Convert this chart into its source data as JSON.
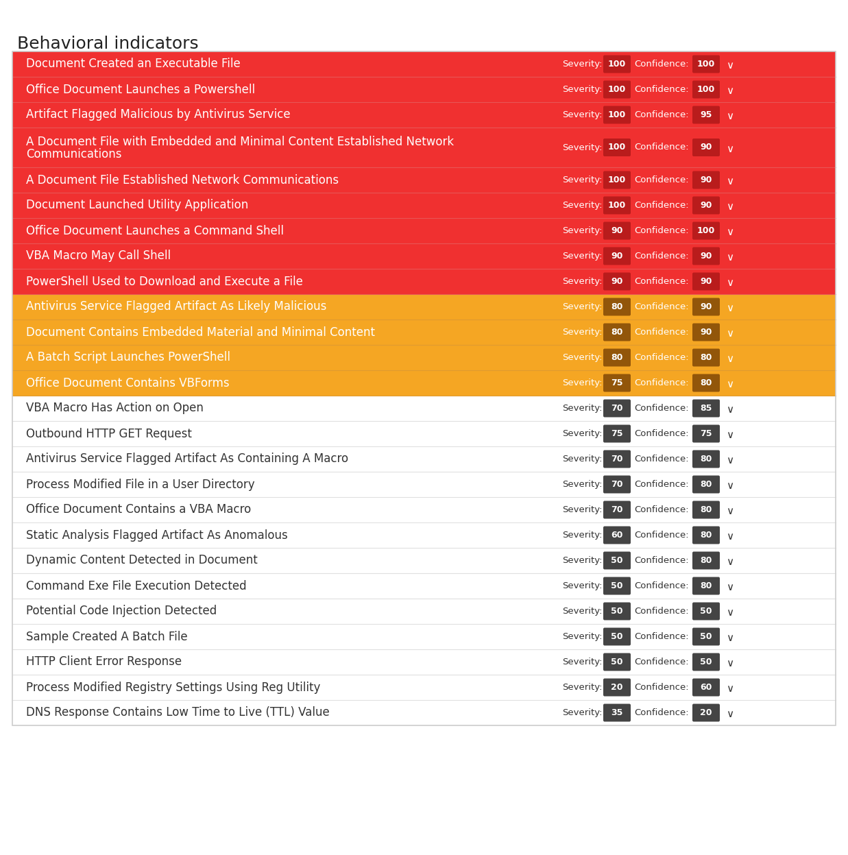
{
  "title": "Behavioral indicators",
  "title_fontsize": 18,
  "title_color": "#222222",
  "title_fontweight": "normal",
  "background_color": "#ffffff",
  "rows": [
    {
      "label": "Document Created an Executable File",
      "severity": 100,
      "confidence": 100,
      "bg": "#f03030",
      "text_color": "#ffffff",
      "multiline": false
    },
    {
      "label": "Office Document Launches a Powershell",
      "severity": 100,
      "confidence": 100,
      "bg": "#f03030",
      "text_color": "#ffffff",
      "multiline": false
    },
    {
      "label": "Artifact Flagged Malicious by Antivirus Service",
      "severity": 100,
      "confidence": 95,
      "bg": "#f03030",
      "text_color": "#ffffff",
      "multiline": false
    },
    {
      "label": "A Document File with Embedded and Minimal Content Established Network\nCommunications",
      "severity": 100,
      "confidence": 90,
      "bg": "#f03030",
      "text_color": "#ffffff",
      "multiline": true
    },
    {
      "label": "A Document File Established Network Communications",
      "severity": 100,
      "confidence": 90,
      "bg": "#f03030",
      "text_color": "#ffffff",
      "multiline": false
    },
    {
      "label": "Document Launched Utility Application",
      "severity": 100,
      "confidence": 90,
      "bg": "#f03030",
      "text_color": "#ffffff",
      "multiline": false
    },
    {
      "label": "Office Document Launches a Command Shell",
      "severity": 90,
      "confidence": 100,
      "bg": "#f03030",
      "text_color": "#ffffff",
      "multiline": false
    },
    {
      "label": "VBA Macro May Call Shell",
      "severity": 90,
      "confidence": 90,
      "bg": "#f03030",
      "text_color": "#ffffff",
      "multiline": false
    },
    {
      "label": "PowerShell Used to Download and Execute a File",
      "severity": 90,
      "confidence": 90,
      "bg": "#f03030",
      "text_color": "#ffffff",
      "multiline": false
    },
    {
      "label": "Antivirus Service Flagged Artifact As Likely Malicious",
      "severity": 80,
      "confidence": 90,
      "bg": "#f5a623",
      "text_color": "#ffffff",
      "multiline": false
    },
    {
      "label": "Document Contains Embedded Material and Minimal Content",
      "severity": 80,
      "confidence": 90,
      "bg": "#f5a623",
      "text_color": "#ffffff",
      "multiline": false
    },
    {
      "label": "A Batch Script Launches PowerShell",
      "severity": 80,
      "confidence": 80,
      "bg": "#f5a623",
      "text_color": "#ffffff",
      "multiline": false
    },
    {
      "label": "Office Document Contains VBForms",
      "severity": 75,
      "confidence": 80,
      "bg": "#f5a623",
      "text_color": "#ffffff",
      "multiline": false
    },
    {
      "label": "VBA Macro Has Action on Open",
      "severity": 70,
      "confidence": 85,
      "bg": "#ffffff",
      "text_color": "#333333",
      "multiline": false
    },
    {
      "label": "Outbound HTTP GET Request",
      "severity": 75,
      "confidence": 75,
      "bg": "#ffffff",
      "text_color": "#333333",
      "multiline": false
    },
    {
      "label": "Antivirus Service Flagged Artifact As Containing A Macro",
      "severity": 70,
      "confidence": 80,
      "bg": "#ffffff",
      "text_color": "#333333",
      "multiline": false
    },
    {
      "label": "Process Modified File in a User Directory",
      "severity": 70,
      "confidence": 80,
      "bg": "#ffffff",
      "text_color": "#333333",
      "multiline": false
    },
    {
      "label": "Office Document Contains a VBA Macro",
      "severity": 70,
      "confidence": 80,
      "bg": "#ffffff",
      "text_color": "#333333",
      "multiline": false
    },
    {
      "label": "Static Analysis Flagged Artifact As Anomalous",
      "severity": 60,
      "confidence": 80,
      "bg": "#ffffff",
      "text_color": "#333333",
      "multiline": false
    },
    {
      "label": "Dynamic Content Detected in Document",
      "severity": 50,
      "confidence": 80,
      "bg": "#ffffff",
      "text_color": "#333333",
      "multiline": false
    },
    {
      "label": "Command Exe File Execution Detected",
      "severity": 50,
      "confidence": 80,
      "bg": "#ffffff",
      "text_color": "#333333",
      "multiline": false
    },
    {
      "label": "Potential Code Injection Detected",
      "severity": 50,
      "confidence": 50,
      "bg": "#ffffff",
      "text_color": "#333333",
      "multiline": false
    },
    {
      "label": "Sample Created A Batch File",
      "severity": 50,
      "confidence": 50,
      "bg": "#ffffff",
      "text_color": "#333333",
      "multiline": false
    },
    {
      "label": "HTTP Client Error Response",
      "severity": 50,
      "confidence": 50,
      "bg": "#ffffff",
      "text_color": "#333333",
      "multiline": false
    },
    {
      "label": "Process Modified Registry Settings Using Reg Utility",
      "severity": 20,
      "confidence": 60,
      "bg": "#ffffff",
      "text_color": "#333333",
      "multiline": false
    },
    {
      "label": "DNS Response Contains Low Time to Live (TTL) Value",
      "severity": 35,
      "confidence": 20,
      "bg": "#ffffff",
      "text_color": "#333333",
      "multiline": false
    }
  ],
  "badge_color_red": "#b91c1c",
  "badge_color_orange": "#92560a",
  "badge_color_grey": "#444444",
  "severity_label": "Severity:",
  "confidence_label": "Confidence:",
  "sep_color_red": "#e85555",
  "sep_color_orange": "#e09a30",
  "sep_color_white": "#e0e0e0",
  "outer_border_color": "#cccccc"
}
